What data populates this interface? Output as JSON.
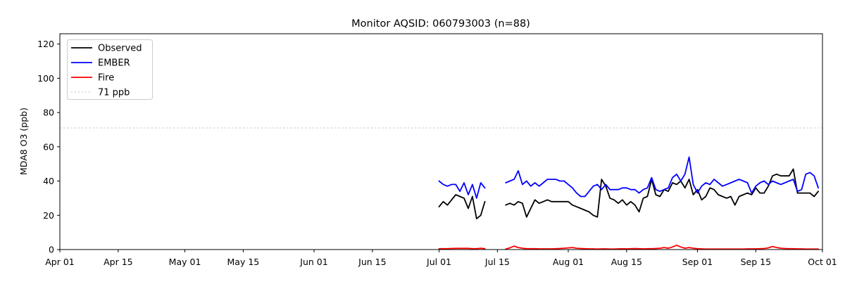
{
  "chart_data": {
    "type": "line",
    "title": "Monitor AQSID: 060793003 (n=88)",
    "ylabel": "MDA8 O3 (ppb)",
    "xlabel": "",
    "ylim": [
      0,
      126
    ],
    "y_ticks": [
      0,
      20,
      40,
      60,
      80,
      100,
      120
    ],
    "x_ticks": [
      {
        "label": "Apr 01",
        "day": 0
      },
      {
        "label": "Apr 15",
        "day": 14
      },
      {
        "label": "May 01",
        "day": 30
      },
      {
        "label": "May 15",
        "day": 44
      },
      {
        "label": "Jun 01",
        "day": 61
      },
      {
        "label": "Jun 15",
        "day": 75
      },
      {
        "label": "Jul 01",
        "day": 91
      },
      {
        "label": "Jul 15",
        "day": 105
      },
      {
        "label": "Aug 01",
        "day": 122
      },
      {
        "label": "Aug 15",
        "day": 136
      },
      {
        "label": "Sep 01",
        "day": 153
      },
      {
        "label": "Sep 15",
        "day": 167
      },
      {
        "label": "Oct 01",
        "day": 183
      }
    ],
    "layout": {
      "total_days": 183,
      "data_start_day": 91,
      "grid": false,
      "legend_position": "upper left"
    },
    "threshold": {
      "value": 71,
      "label": "71 ppb",
      "color": "#d3d3d3",
      "style": "dotted"
    },
    "dates": [
      "07-01",
      "07-02",
      "07-03",
      "07-04",
      "07-05",
      "07-06",
      "07-07",
      "07-08",
      "07-09",
      "07-10",
      "07-11",
      "07-12",
      "07-13",
      "07-14",
      "07-15",
      "07-16",
      "07-17",
      "07-18",
      "07-19",
      "07-20",
      "07-21",
      "07-22",
      "07-23",
      "07-24",
      "07-25",
      "07-26",
      "07-27",
      "07-28",
      "07-29",
      "07-30",
      "07-31",
      "08-01",
      "08-02",
      "08-03",
      "08-04",
      "08-05",
      "08-06",
      "08-07",
      "08-08",
      "08-09",
      "08-10",
      "08-11",
      "08-12",
      "08-13",
      "08-14",
      "08-15",
      "08-16",
      "08-17",
      "08-18",
      "08-19",
      "08-20",
      "08-21",
      "08-22",
      "08-23",
      "08-24",
      "08-25",
      "08-26",
      "08-27",
      "08-28",
      "08-29",
      "08-30",
      "08-31",
      "09-01",
      "09-02",
      "09-03",
      "09-04",
      "09-05",
      "09-06",
      "09-07",
      "09-08",
      "09-09",
      "09-10",
      "09-11",
      "09-12",
      "09-13",
      "09-14",
      "09-15",
      "09-16",
      "09-17",
      "09-18",
      "09-19",
      "09-20",
      "09-21",
      "09-22",
      "09-23",
      "09-24",
      "09-25",
      "09-26",
      "09-27",
      "09-28",
      "09-29",
      "09-30"
    ],
    "series": [
      {
        "name": "Observed",
        "color": "#000000",
        "values": [
          25,
          28,
          26,
          29,
          32,
          31,
          30,
          24,
          31,
          18,
          20,
          28,
          null,
          null,
          null,
          null,
          26,
          27,
          26,
          28,
          27,
          19,
          24,
          29,
          27,
          28,
          29,
          28,
          28,
          28,
          28,
          28,
          26,
          25,
          24,
          23,
          22,
          20,
          19,
          41,
          37,
          30,
          29,
          27,
          29,
          26,
          28,
          26,
          22,
          30,
          31,
          41,
          32,
          31,
          35,
          34,
          39,
          38,
          40,
          36,
          41,
          32,
          35,
          29,
          31,
          36,
          35,
          32,
          31,
          30,
          31,
          26,
          31,
          32,
          33,
          32,
          36,
          33,
          33,
          37,
          43,
          44,
          43,
          43,
          43,
          47,
          33,
          33,
          33,
          33,
          31,
          34
        ]
      },
      {
        "name": "EMBER",
        "color": "#0000ff",
        "values": [
          40,
          38,
          37,
          38,
          38,
          34,
          39,
          32,
          38,
          30,
          39,
          36,
          null,
          null,
          null,
          null,
          39,
          40,
          41,
          46,
          38,
          40,
          37,
          39,
          37,
          39,
          41,
          41,
          41,
          40,
          40,
          38,
          36,
          33,
          31,
          31,
          34,
          37,
          38,
          35,
          38,
          35,
          35,
          35,
          36,
          36,
          35,
          35,
          33,
          35,
          36,
          42,
          35,
          34,
          35,
          36,
          42,
          44,
          40,
          44,
          54,
          38,
          33,
          37,
          39,
          38,
          41,
          39,
          37,
          38,
          39,
          40,
          41,
          40,
          39,
          33,
          37,
          39,
          40,
          38,
          40,
          39,
          38,
          39,
          40,
          41,
          34,
          35,
          44,
          45,
          43,
          36
        ]
      },
      {
        "name": "Fire",
        "color": "#ff0000",
        "values": [
          0.5,
          0.5,
          0.5,
          0.6,
          0.7,
          0.7,
          0.7,
          0.7,
          0.5,
          0.5,
          0.8,
          0.5,
          null,
          null,
          null,
          null,
          0.3,
          1.0,
          2.0,
          1.2,
          0.8,
          0.5,
          0.5,
          0.5,
          0.4,
          0.4,
          0.4,
          0.4,
          0.5,
          0.6,
          0.8,
          1.0,
          1.2,
          0.8,
          0.6,
          0.5,
          0.4,
          0.4,
          0.3,
          0.4,
          0.4,
          0.3,
          0.3,
          0.4,
          0.5,
          0.4,
          0.5,
          0.6,
          0.5,
          0.4,
          0.5,
          0.5,
          0.6,
          0.8,
          1.2,
          0.8,
          1.5,
          2.5,
          1.5,
          0.8,
          1.2,
          0.8,
          0.5,
          0.4,
          0.3,
          0.3,
          0.3,
          0.3,
          0.3,
          0.3,
          0.3,
          0.3,
          0.3,
          0.3,
          0.4,
          0.4,
          0.4,
          0.5,
          0.6,
          1.0,
          1.8,
          1.2,
          0.8,
          0.6,
          0.5,
          0.5,
          0.4,
          0.4,
          0.3,
          0.3,
          0.3,
          0.3
        ]
      }
    ],
    "legend": {
      "entries": [
        "Observed",
        "EMBER",
        "Fire",
        "71 ppb"
      ]
    }
  }
}
